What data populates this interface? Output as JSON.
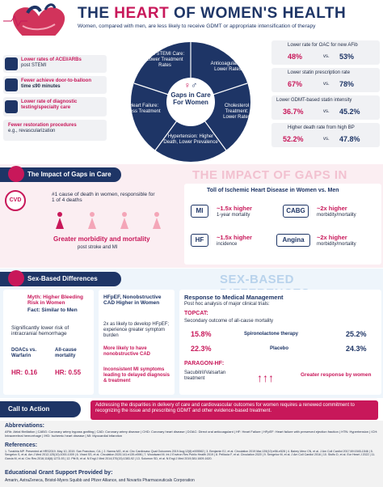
{
  "header": {
    "title_pre": "THE ",
    "title_hl": "HEART",
    "title_post": " OF WOMEN'S HEALTH",
    "subtitle": "Women, compared with men, are less likely to receive GDMT or appropriate intensification of therapy"
  },
  "gaps": {
    "left_items": [
      {
        "main": "Lower rates of ACEI/ARBs",
        "sub": "post STEMI"
      },
      {
        "main": "Fewer achieve door-to-balloon",
        "sub": "time ≤90 minutes"
      },
      {
        "main": "Lower rate of diagnostic testing/specialty care",
        "sub": ""
      },
      {
        "main": "Fewer restoration procedures",
        "sub": "e.g., revascularization"
      }
    ],
    "wheel": {
      "center": "Gaps in Care For Women",
      "segments": [
        "Post STEMI Care: Lower Treatment Rates",
        "Anticoagulation: Lower Rates",
        "Cholesterol Treatment: Lower Rates",
        "Hypertension: Higher Death, Lower Prevalence",
        "Heart Failure: Less Treatment"
      ]
    },
    "right_items": [
      {
        "label": "Lower rate for OAC for new AFib",
        "women": "48%",
        "vs": "vs.",
        "men": "53%"
      },
      {
        "label": "Lower statin prescription rate",
        "women": "67%",
        "vs": "vs.",
        "men": "78%"
      },
      {
        "label": "Lower GDMT-based statin intensity",
        "women": "36.7%",
        "vs": "vs.",
        "men": "45.2%"
      },
      {
        "label": "Higher death rate from high BP",
        "women": "52.2%",
        "vs": "vs.",
        "men": "47.8%"
      }
    ]
  },
  "impact": {
    "heading": "The Impact of Gaps in Care",
    "big": "THE IMPACT OF GAPS IN CARE",
    "cvd_tag": "CVD",
    "cvd_text": "#1 cause of death in women, responsible for 1 of 4 deaths",
    "cvd_more": "Greater morbidity and mortality",
    "cvd_more_sub": "post stroke and MI",
    "toll_title": "Toll of Ischemic Heart Disease in Women vs. Men",
    "tolls": [
      {
        "tag": "MI",
        "value": "~1.5x higher",
        "desc": "1-year mortality"
      },
      {
        "tag": "CABG",
        "value": "~2x higher",
        "desc": "morbidity/mortality"
      },
      {
        "tag": "HF",
        "value": "~1.5x higher",
        "desc": "incidence"
      },
      {
        "tag": "Angina",
        "value": "~2x higher",
        "desc": "morbidity/mortality"
      }
    ]
  },
  "sex": {
    "heading": "Sex-Based Differences",
    "big": "SEX-BASED DIFFERENCES",
    "myth": "Myth: Higher Bleeding Risk in Women",
    "fact": "Fact: Similar to Men",
    "ich": "Significantly lower risk of intracranial hemorrhage",
    "doacs": "DOACs vs. Warfarin",
    "allcause": "All-cause mortality",
    "hr1": "HR: 0.16",
    "hr2": "HR: 0.55",
    "hfpef_title": "HFpEF, Nonobstructive CAD Higher in Women",
    "hfpef_1": "2x as likely to develop HFpEF; experience greater symptom burden",
    "hfpef_2": "More likely to have nonobstructive CAD",
    "hfpef_3": "Inconsistent MI symptoms leading to delayed diagnosis & treatment",
    "resp_title": "Response to Medical Management",
    "resp_sub": "Post hoc analysis of major clinical trials:",
    "topcat": "TOPCAT:",
    "topcat_sub": "Secondary outcome of all-cause mortality",
    "spiro": "Spironolactone therapy",
    "placebo": "Placebo",
    "w1": "15.8%",
    "m1": "25.2%",
    "w2": "22.3%",
    "m2": "24.3%",
    "paragon": "PARAGON-HF:",
    "sacu": "Sacubitril/Valsartan treatment",
    "greater": "Greater response by women"
  },
  "cta": {
    "label": "Call to Action",
    "text": "Addressing the disparities in delivery of care and cardiovascular outcomes for women requires a renewed commitment to recognizing the issue and prescribing GDMT and other evidence-based treatment."
  },
  "footer": {
    "abbr_title": "Abbreviations:",
    "abbr_text": "AFib: Atrial fibrillation | CABG: Coronary artery bypass grafting | CAD: Coronary artery disease | CHD: Coronary heart disease | DOAC: Direct oral anticoagulant | HF: Heart Failure | HFpEF: Heart failure with preserved ejection fraction | HTN: Hypertension | ICH: Intracerebral hemorrhage | IHD: Ischemic heart disease | MI: Myocardial infarction",
    "ref_title": "References:",
    "ref_text": "1. Turakhia MP. Presented at HRS2019. May 10, 2019. San Francisco, CA. | 2. Nanna MG, et al. Circ Cardiovasc Qual Outcomes 2019 Aug;12(8):e005562 | 3. Benjamin EJ, et al. Circulation 2019 Mar;139(10):e56-e528 | 4. Bairey Merz CN, et al. J Am Coll Cardiol 2017;69:1545-1546 | 5. Sengelov S, et al. Am J Med 2012;125(10):1000-1009 | 6. Virani SS, et al. Circulation 2020;141:e139-e596 | 7. Woodward M. Int J Environ Res Public Health 2019 | 8. Pelliccia F, et al. Circulation 2020 | 9. Sengelov M, et al. J Am Coll Cardiol 2016 | 10. Stolfo D, et al. Eur Heart J 2022 | 11. Garcia M, et al. Circ Res 2016;118(8):1273-93 | 12. Pitt B, et al. N Engl J Med 2014;370(15):1383-92 | 13. Solomon SD, et al. N Engl J Med 2019;381:1609-1620.",
    "grant_title": "Educational Grant Support Provided by:",
    "grant_text": "Amarin, AstraZeneca, Bristol-Myers Squibb and Pfizer Alliance, and Novartis Pharmaceuticals Corporation"
  },
  "colors": {
    "navy": "#1e3566",
    "pink": "#c8185a",
    "light_pink": "#fbeef2",
    "light_blue": "#eef5fb"
  }
}
